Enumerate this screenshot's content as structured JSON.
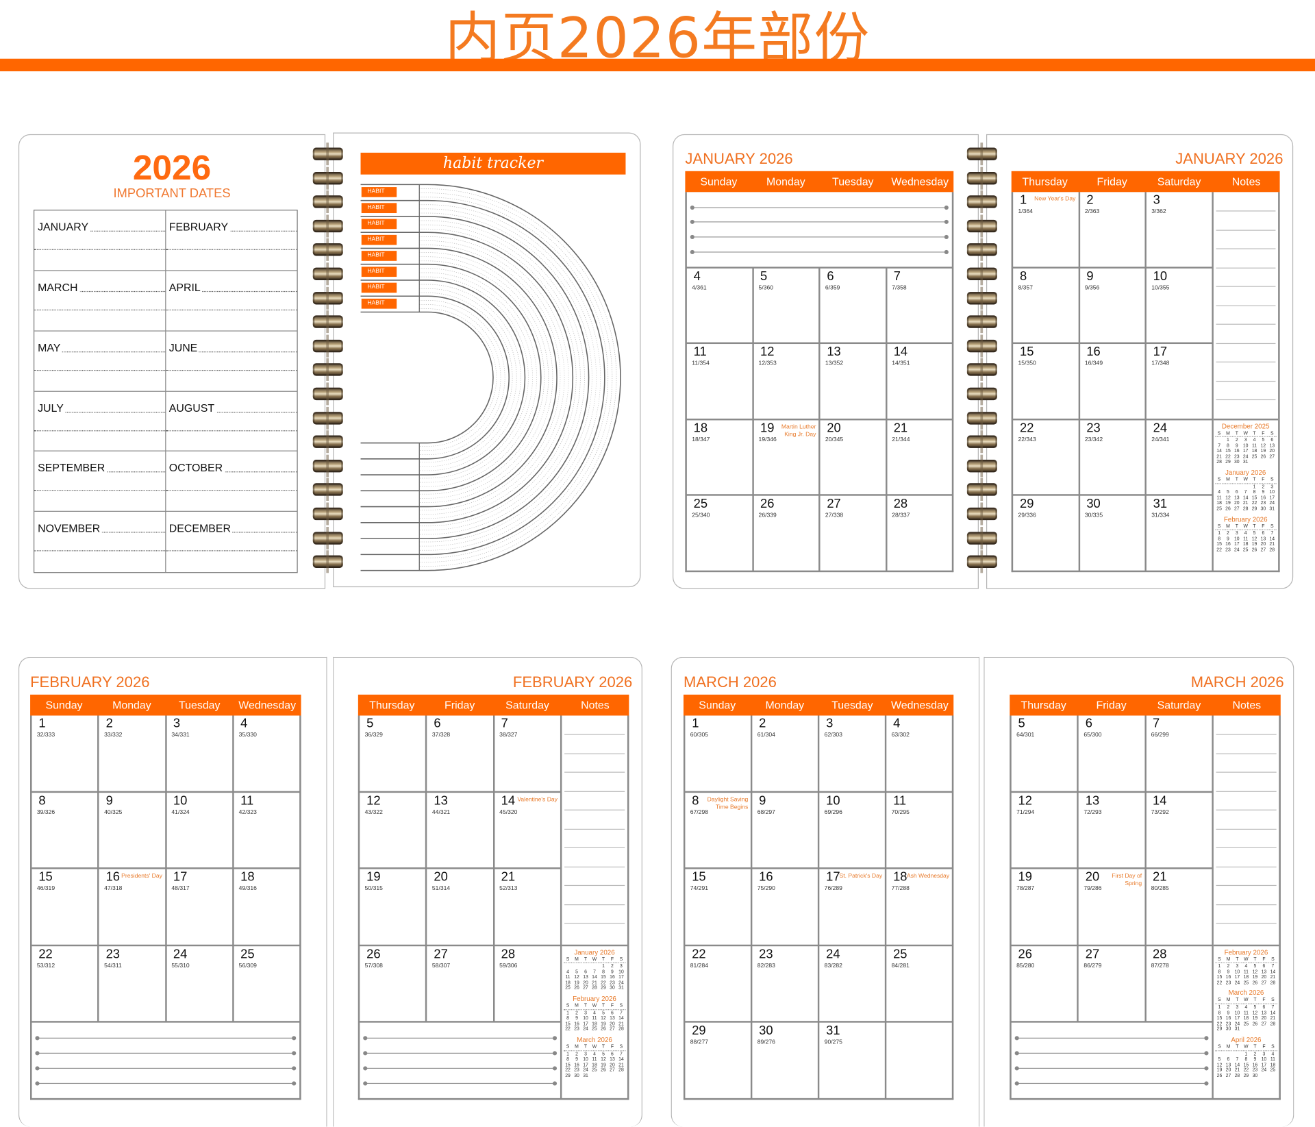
{
  "page_title": "内页2026年部份",
  "colors": {
    "accent": "#ff6600",
    "title_text": "#f47a20",
    "grid_line": "#8a8a8a"
  },
  "important_dates": {
    "year": "2026",
    "subtitle": "IMPORTANT DATES",
    "months": [
      "JANUARY",
      "FEBRUARY",
      "MARCH",
      "APRIL",
      "MAY",
      "JUNE",
      "JULY",
      "AUGUST",
      "SEPTEMBER",
      "OCTOBER",
      "NOVEMBER",
      "DECEMBER"
    ]
  },
  "habit_tracker": {
    "title": "habit tracker",
    "labels": [
      "HABIT",
      "HABIT",
      "HABIT",
      "HABIT",
      "HABIT",
      "HABIT",
      "HABIT",
      "HABIT"
    ]
  },
  "mini_header": [
    "S",
    "M",
    "T",
    "W",
    "T",
    "F",
    "S"
  ],
  "mini_calendars": {
    "dec2025": {
      "title": "December 2025",
      "weeks": [
        ",1,2,3,4,5,6",
        "7,8,9,10,11,12,13",
        "14,15,16,17,18,19,20",
        "21,22,23,24,25,26,27",
        "28,29,30,31"
      ]
    },
    "jan2026": {
      "title": "January 2026",
      "weeks": [
        ",,,,1,2,3",
        "4,5,6,7,8,9,10",
        "11,12,13,14,15,16,17",
        "18,19,20,21,22,23,24",
        "25,26,27,28,29,30,31"
      ]
    },
    "feb2026": {
      "title": "February 2026",
      "weeks": [
        "1,2,3,4,5,6,7",
        "8,9,10,11,12,13,14",
        "15,16,17,18,19,20,21",
        "22,23,24,25,26,27,28"
      ]
    },
    "mar2026": {
      "title": "March 2026",
      "weeks": [
        "1,2,3,4,5,6,7",
        "8,9,10,11,12,13,14",
        "15,16,17,18,19,20,21",
        "22,23,24,25,26,27,28",
        "29,30,31"
      ]
    },
    "apr2026": {
      "title": "April 2026",
      "weeks": [
        ",,,1,2,3,4",
        "5,6,7,8,9,10,11",
        "12,13,14,15,16,17,18",
        "19,20,21,22,23,24,25",
        "26,27,28,29,30"
      ]
    }
  },
  "calendars": {
    "jan_left": {
      "title": "JANUARY 2026",
      "headers": [
        "Sunday",
        "Monday",
        "Tuesday",
        "Wednesday"
      ],
      "rows": [
        {
          "lined": true
        },
        {
          "cells": [
            [
              "4",
              "4/361"
            ],
            [
              "5",
              "5/360"
            ],
            [
              "6",
              "6/359"
            ],
            [
              "7",
              "7/358"
            ]
          ]
        },
        {
          "cells": [
            [
              "11",
              "11/354"
            ],
            [
              "12",
              "12/353"
            ],
            [
              "13",
              "13/352"
            ],
            [
              "14",
              "14/351"
            ]
          ]
        },
        {
          "cells": [
            [
              "18",
              "18/347"
            ],
            [
              "19",
              "19/346",
              "Martin Luther King Jr. Day"
            ],
            [
              "20",
              "20/345"
            ],
            [
              "21",
              "21/344"
            ]
          ]
        },
        {
          "cells": [
            [
              "25",
              "25/340"
            ],
            [
              "26",
              "26/339"
            ],
            [
              "27",
              "27/338"
            ],
            [
              "28",
              "28/337"
            ]
          ]
        }
      ]
    },
    "jan_right": {
      "title": "JANUARY 2026",
      "headers": [
        "Thursday",
        "Friday",
        "Saturday",
        "Notes"
      ],
      "notes": true,
      "minis": [
        "dec2025",
        "jan2026",
        "feb2026"
      ],
      "rows": [
        {
          "cells": [
            [
              "1",
              "1/364",
              "New Year's Day"
            ],
            [
              "2",
              "2/363"
            ],
            [
              "3",
              "3/362"
            ]
          ]
        },
        {
          "cells": [
            [
              "8",
              "8/357"
            ],
            [
              "9",
              "9/356"
            ],
            [
              "10",
              "10/355"
            ]
          ]
        },
        {
          "cells": [
            [
              "15",
              "15/350"
            ],
            [
              "16",
              "16/349"
            ],
            [
              "17",
              "17/348"
            ]
          ]
        },
        {
          "cells": [
            [
              "22",
              "22/343"
            ],
            [
              "23",
              "23/342"
            ],
            [
              "24",
              "24/341"
            ]
          ]
        },
        {
          "cells": [
            [
              "29",
              "29/336"
            ],
            [
              "30",
              "30/335"
            ],
            [
              "31",
              "31/334"
            ]
          ]
        }
      ]
    },
    "feb_left": {
      "title": "FEBRUARY 2026",
      "headers": [
        "Sunday",
        "Monday",
        "Tuesday",
        "Wednesday"
      ],
      "rows": [
        {
          "cells": [
            [
              "1",
              "32/333"
            ],
            [
              "2",
              "33/332"
            ],
            [
              "3",
              "34/331"
            ],
            [
              "4",
              "35/330"
            ]
          ]
        },
        {
          "cells": [
            [
              "8",
              "39/326"
            ],
            [
              "9",
              "40/325"
            ],
            [
              "10",
              "41/324"
            ],
            [
              "11",
              "42/323"
            ]
          ]
        },
        {
          "cells": [
            [
              "15",
              "46/319"
            ],
            [
              "16",
              "47/318",
              "Presidents' Day"
            ],
            [
              "17",
              "48/317"
            ],
            [
              "18",
              "49/316"
            ]
          ]
        },
        {
          "cells": [
            [
              "22",
              "53/312"
            ],
            [
              "23",
              "54/311"
            ],
            [
              "24",
              "55/310"
            ],
            [
              "25",
              "56/309"
            ]
          ]
        },
        {
          "lined": true
        }
      ]
    },
    "feb_right": {
      "title": "FEBRUARY 2026",
      "headers": [
        "Thursday",
        "Friday",
        "Saturday",
        "Notes"
      ],
      "notes": true,
      "minis": [
        "jan2026",
        "feb2026",
        "mar2026"
      ],
      "rows": [
        {
          "cells": [
            [
              "5",
              "36/329"
            ],
            [
              "6",
              "37/328"
            ],
            [
              "7",
              "38/327"
            ]
          ]
        },
        {
          "cells": [
            [
              "12",
              "43/322"
            ],
            [
              "13",
              "44/321"
            ],
            [
              "14",
              "45/320",
              "Valentine's Day"
            ]
          ]
        },
        {
          "cells": [
            [
              "19",
              "50/315"
            ],
            [
              "20",
              "51/314"
            ],
            [
              "21",
              "52/313"
            ]
          ]
        },
        {
          "cells": [
            [
              "26",
              "57/308"
            ],
            [
              "27",
              "58/307"
            ],
            [
              "28",
              "59/306"
            ]
          ]
        },
        {
          "lined": true
        }
      ]
    },
    "mar_left": {
      "title": "MARCH 2026",
      "headers": [
        "Sunday",
        "Monday",
        "Tuesday",
        "Wednesday"
      ],
      "rows": [
        {
          "cells": [
            [
              "1",
              "60/305"
            ],
            [
              "2",
              "61/304"
            ],
            [
              "3",
              "62/303"
            ],
            [
              "4",
              "63/302"
            ]
          ]
        },
        {
          "cells": [
            [
              "8",
              "67/298",
              "Daylight Saving Time Begins"
            ],
            [
              "9",
              "68/297"
            ],
            [
              "10",
              "69/296"
            ],
            [
              "11",
              "70/295"
            ]
          ]
        },
        {
          "cells": [
            [
              "15",
              "74/291"
            ],
            [
              "16",
              "75/290"
            ],
            [
              "17",
              "76/289",
              "St. Patrick's Day"
            ],
            [
              "18",
              "77/288",
              "Ash Wednesday"
            ]
          ]
        },
        {
          "cells": [
            [
              "22",
              "81/284"
            ],
            [
              "23",
              "82/283"
            ],
            [
              "24",
              "83/282"
            ],
            [
              "25",
              "84/281"
            ]
          ]
        },
        {
          "cells": [
            [
              "29",
              "88/277"
            ],
            [
              "30",
              "89/276"
            ],
            [
              "31",
              "90/275"
            ],
            null
          ]
        }
      ]
    },
    "mar_right": {
      "title": "MARCH 2026",
      "headers": [
        "Thursday",
        "Friday",
        "Saturday",
        "Notes"
      ],
      "notes": true,
      "minis": [
        "feb2026",
        "mar2026",
        "apr2026"
      ],
      "rows": [
        {
          "cells": [
            [
              "5",
              "64/301"
            ],
            [
              "6",
              "65/300"
            ],
            [
              "7",
              "66/299"
            ]
          ]
        },
        {
          "cells": [
            [
              "12",
              "71/294"
            ],
            [
              "13",
              "72/293"
            ],
            [
              "14",
              "73/292"
            ]
          ]
        },
        {
          "cells": [
            [
              "19",
              "78/287"
            ],
            [
              "20",
              "79/286",
              "First Day of Spring"
            ],
            [
              "21",
              "80/285"
            ]
          ]
        },
        {
          "cells": [
            [
              "26",
              "85/280"
            ],
            [
              "27",
              "86/279"
            ],
            [
              "28",
              "87/278"
            ]
          ]
        },
        {
          "lined": true
        }
      ]
    }
  }
}
